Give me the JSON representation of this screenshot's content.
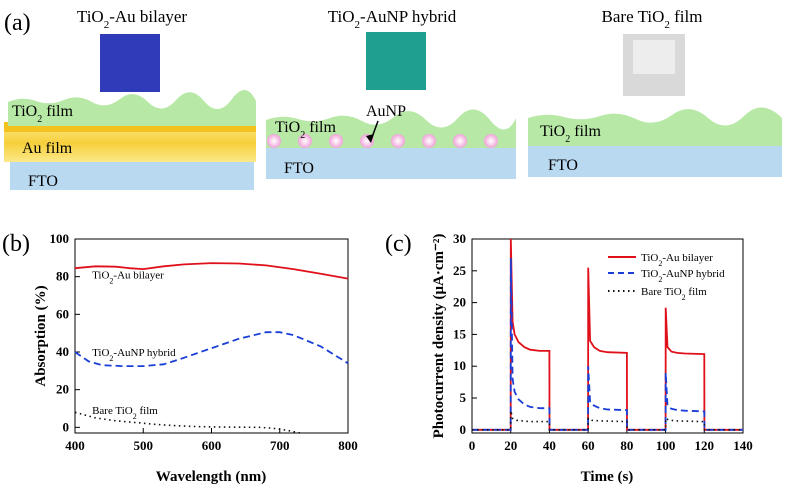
{
  "panel_a": {
    "label": "(a)",
    "samples": [
      {
        "title_pre": "TiO",
        "title_sub": "2",
        "title_post": "-Au bilayer",
        "swatch_color": "#2f3bb8",
        "layers": [
          {
            "pre": "TiO",
            "sub": "2",
            "post": " film",
            "color": "#b7e8a6"
          },
          {
            "pre": "Au film",
            "sub": "",
            "post": "",
            "color": "#f7d85a"
          },
          {
            "pre": "FTO",
            "sub": "",
            "post": "",
            "color": "#b9d9f1"
          }
        ]
      },
      {
        "title_pre": "TiO",
        "title_sub": "2",
        "title_post": "-AuNP hybrid",
        "swatch_color": "#1fa08f",
        "nanoparticle_label": "AuNP",
        "layers": [
          {
            "pre": "TiO",
            "sub": "2",
            "post": " film",
            "color": "#b7e8a6"
          },
          {
            "pre": "FTO",
            "sub": "",
            "post": "",
            "color": "#b9d9f1"
          }
        ]
      },
      {
        "title_pre": "Bare TiO",
        "title_sub": "2",
        "title_post": " film",
        "swatch_color": "#d9d9d9",
        "layers": [
          {
            "pre": "TiO",
            "sub": "2",
            "post": " film",
            "color": "#b7e8a6"
          },
          {
            "pre": "FTO",
            "sub": "",
            "post": "",
            "color": "#b9d9f1"
          }
        ]
      }
    ]
  },
  "chart_data": [
    {
      "panel": "(b)",
      "type": "line",
      "xlabel": "Wavelength (nm)",
      "ylabel": "Absorption (%)",
      "xlim": [
        400,
        800
      ],
      "ylim": [
        -3,
        100
      ],
      "xticks": [
        400,
        500,
        600,
        700,
        800
      ],
      "yticks": [
        0,
        20,
        40,
        60,
        80,
        100
      ],
      "annotations": [
        {
          "pre": "TiO",
          "sub": "2",
          "post": "-Au bilayer",
          "x": 425,
          "y": 79
        },
        {
          "pre": "TiO",
          "sub": "2",
          "post": "-AuNP hybrid",
          "x": 425,
          "y": 38
        },
        {
          "pre": "Bare TiO",
          "sub": "2",
          "post": " film",
          "x": 425,
          "y": 7
        }
      ],
      "series": [
        {
          "color": "#e0101a",
          "dash": "none",
          "x": [
            400,
            430,
            460,
            480,
            500,
            530,
            560,
            600,
            640,
            680,
            720,
            760,
            800
          ],
          "y": [
            84.5,
            85.5,
            85.3,
            84.5,
            84,
            85.5,
            86.5,
            87.2,
            87,
            86,
            84,
            81.5,
            79
          ]
        },
        {
          "color": "#1a3fd6",
          "dash": "dash",
          "x": [
            400,
            420,
            440,
            470,
            500,
            530,
            560,
            600,
            640,
            680,
            700,
            720,
            760,
            800
          ],
          "y": [
            40,
            35,
            33,
            32.5,
            32.5,
            33.5,
            37,
            42,
            47,
            50.5,
            50.5,
            49,
            43,
            34
          ]
        },
        {
          "color": "#111111",
          "dash": "dot",
          "x": [
            400,
            430,
            460,
            490,
            520,
            550,
            580,
            610,
            640,
            670,
            690,
            710,
            730
          ],
          "y": [
            8,
            5,
            3.5,
            2.5,
            1.5,
            0.8,
            0.4,
            0.2,
            0.1,
            0,
            -0.5,
            -1.5,
            -3
          ]
        }
      ]
    },
    {
      "panel": "(c)",
      "type": "line",
      "xlabel": "Time (s)",
      "ylabel": "Photocurrent density (μA·cm⁻²)",
      "xlim": [
        0,
        140
      ],
      "ylim": [
        -0.5,
        30
      ],
      "xticks": [
        0,
        20,
        40,
        60,
        80,
        100,
        120,
        140
      ],
      "yticks": [
        0,
        5,
        10,
        15,
        20,
        25,
        30
      ],
      "legend": {
        "position": "top-right",
        "entries": [
          {
            "pre": "TiO",
            "sub": "2",
            "post": "-Au bilayer"
          },
          {
            "pre": "TiO",
            "sub": "2",
            "post": "-AuNP hybrid"
          },
          {
            "pre": "Bare TiO",
            "sub": "2",
            "post": " film"
          }
        ]
      },
      "series": [
        {
          "color": "#e0101a",
          "dash": "none",
          "x": [
            0,
            20,
            20.05,
            21,
            22,
            24,
            27,
            30,
            35,
            40,
            40.05,
            60,
            60.05,
            61,
            63,
            66,
            70,
            80,
            80.05,
            100,
            100.05,
            101,
            103,
            106,
            110,
            120,
            120.05,
            140
          ],
          "y": [
            0,
            0,
            30,
            17,
            15,
            13.8,
            13,
            12.6,
            12.4,
            12.4,
            0,
            0,
            25.5,
            14,
            13,
            12.4,
            12.2,
            12.1,
            0,
            0,
            19.2,
            13,
            12.3,
            12.1,
            12,
            11.9,
            0,
            0
          ]
        },
        {
          "color": "#1a3fd6",
          "dash": "dash",
          "x": [
            0,
            20,
            20.05,
            21,
            22,
            24,
            27,
            30,
            35,
            40,
            40.05,
            60,
            60.05,
            61,
            63,
            66,
            70,
            80,
            80.05,
            100,
            100.05,
            101,
            103,
            106,
            110,
            120,
            120.05,
            140
          ],
          "y": [
            0,
            0,
            27,
            8,
            6,
            4.8,
            4,
            3.6,
            3.4,
            3.4,
            0,
            0,
            10,
            4.3,
            3.8,
            3.4,
            3.2,
            3.1,
            0,
            0,
            9,
            3.8,
            3.3,
            3.1,
            3,
            2.9,
            0,
            0
          ]
        },
        {
          "color": "#111111",
          "dash": "dot",
          "x": [
            0,
            20,
            20.05,
            21,
            23,
            26,
            30,
            40,
            40.05,
            60,
            60.05,
            62,
            66,
            80,
            80.05,
            100,
            100.05,
            102,
            106,
            120,
            120.05,
            140
          ],
          "y": [
            0,
            0,
            3,
            1.8,
            1.5,
            1.4,
            1.3,
            1.3,
            0,
            0,
            1.8,
            1.5,
            1.4,
            1.3,
            0,
            0,
            1.8,
            1.5,
            1.4,
            1.3,
            0,
            0
          ]
        }
      ]
    }
  ]
}
